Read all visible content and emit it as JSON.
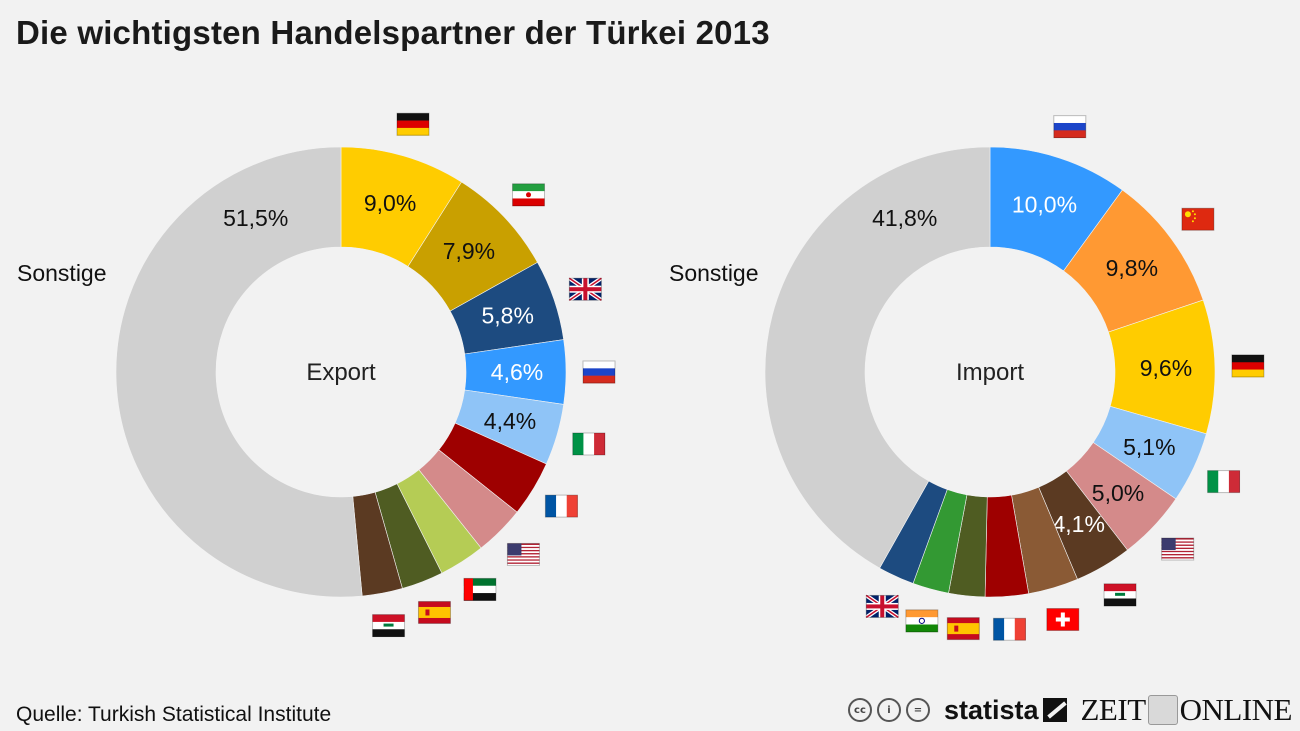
{
  "title": "Die wichtigsten Handelspartner der Türkei 2013",
  "source": "Quelle: Turkish Statistical Institute",
  "logos": {
    "cc": [
      "cc",
      "i",
      "="
    ],
    "statista": "statista",
    "zeit_left": "ZEIT",
    "zeit_right": "ONLINE"
  },
  "chart_data": [
    {
      "type": "pie",
      "variant": "donut",
      "center_label": "Export",
      "other_label": "Sonstige",
      "segments": [
        {
          "country": "Deutschland",
          "flag": "germany-flag",
          "value": 9.0,
          "label": "9,0%",
          "color": "#ffcc00",
          "text_color": "#111111"
        },
        {
          "country": "Iran",
          "flag": "iran-flag",
          "value": 7.9,
          "label": "7,9%",
          "color": "#c9a000",
          "text_color": "#111111"
        },
        {
          "country": "Großbritannien",
          "flag": "uk-flag",
          "value": 5.8,
          "label": "5,8%",
          "color": "#1d4b80",
          "text_color": "#ffffff"
        },
        {
          "country": "Russland",
          "flag": "russia-flag",
          "value": 4.6,
          "label": "4,6%",
          "color": "#3399ff",
          "text_color": "#ffffff"
        },
        {
          "country": "Italien",
          "flag": "italy-flag",
          "value": 4.4,
          "label": "4,4%",
          "color": "#8fc4f7",
          "text_color": "#111111"
        },
        {
          "country": "Frankreich",
          "flag": "france-flag",
          "value": 4.0,
          "label": "",
          "color": "#9e0000",
          "text_color": "#ffffff"
        },
        {
          "country": "USA",
          "flag": "usa-flag",
          "value": 3.6,
          "label": "",
          "color": "#d48a8a",
          "text_color": "#111111"
        },
        {
          "country": "VAE",
          "flag": "uae-flag",
          "value": 3.3,
          "label": "",
          "color": "#b5cc55",
          "text_color": "#111111"
        },
        {
          "country": "Spanien",
          "flag": "spain-flag",
          "value": 3.0,
          "label": "",
          "color": "#4f5c22",
          "text_color": "#ffffff"
        },
        {
          "country": "Irak",
          "flag": "iraq-flag",
          "value": 2.9,
          "label": "",
          "color": "#5b3a22",
          "text_color": "#ffffff"
        },
        {
          "country": "Sonstige",
          "flag": "",
          "value": 51.5,
          "label": "51,5%",
          "color": "#d0d0d0",
          "text_color": "#111111"
        }
      ]
    },
    {
      "type": "pie",
      "variant": "donut",
      "center_label": "Import",
      "other_label": "Sonstige",
      "segments": [
        {
          "country": "Russland",
          "flag": "russia-flag",
          "value": 10.0,
          "label": "10,0%",
          "color": "#3399ff",
          "text_color": "#ffffff"
        },
        {
          "country": "China",
          "flag": "china-flag",
          "value": 9.8,
          "label": "9,8%",
          "color": "#ff9933",
          "text_color": "#111111"
        },
        {
          "country": "Deutschland",
          "flag": "germany-flag",
          "value": 9.6,
          "label": "9,6%",
          "color": "#ffcc00",
          "text_color": "#111111"
        },
        {
          "country": "Italien",
          "flag": "italy-flag",
          "value": 5.1,
          "label": "5,1%",
          "color": "#8fc4f7",
          "text_color": "#111111"
        },
        {
          "country": "USA",
          "flag": "usa-flag",
          "value": 5.0,
          "label": "5,0%",
          "color": "#d48a8a",
          "text_color": "#111111"
        },
        {
          "country": "Irak",
          "flag": "iraq-flag",
          "value": 4.1,
          "label": "4,1%",
          "color": "#5b3a22",
          "text_color": "#ffffff"
        },
        {
          "country": "Schweiz",
          "flag": "switzerland-flag",
          "value": 3.6,
          "label": "",
          "color": "#8a5a35",
          "text_color": "#ffffff"
        },
        {
          "country": "Frankreich",
          "flag": "france-flag",
          "value": 3.1,
          "label": "",
          "color": "#9e0000",
          "text_color": "#ffffff"
        },
        {
          "country": "Spanien",
          "flag": "spain-flag",
          "value": 2.6,
          "label": "",
          "color": "#4f5c22",
          "text_color": "#ffffff"
        },
        {
          "country": "Indien",
          "flag": "india-flag",
          "value": 2.6,
          "label": "",
          "color": "#339933",
          "text_color": "#ffffff"
        },
        {
          "country": "Großbritannien",
          "flag": "uk-flag",
          "value": 2.6,
          "label": "",
          "color": "#1d4b80",
          "text_color": "#ffffff"
        },
        {
          "country": "Sonstige",
          "flag": "",
          "value": 41.8,
          "label": "41,8%",
          "color": "#d0d0d0",
          "text_color": "#111111"
        }
      ]
    }
  ]
}
